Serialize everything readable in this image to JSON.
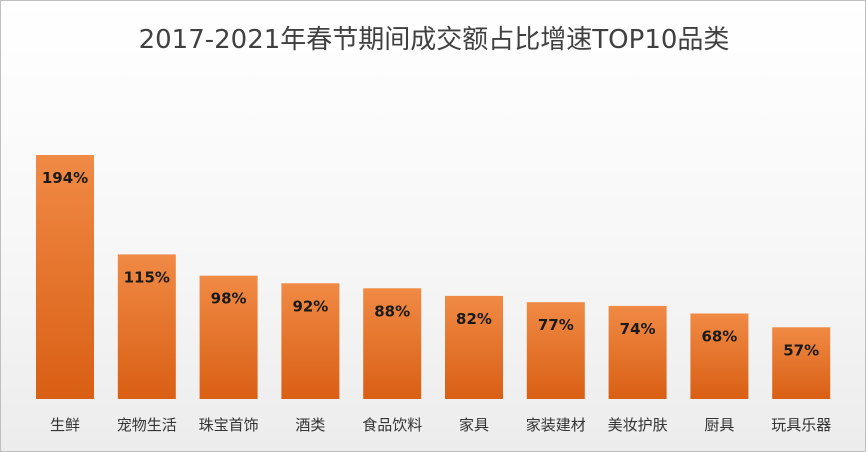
{
  "chart_data": {
    "type": "bar",
    "title": "2017-2021年春节期间成交额占比增速TOP10品类",
    "categories": [
      "生鲜",
      "宠物生活",
      "珠宝首饰",
      "酒类",
      "食品饮料",
      "家具",
      "家装建材",
      "美妆护肤",
      "厨具",
      "玩具乐器"
    ],
    "values": [
      194,
      115,
      98,
      92,
      88,
      82,
      77,
      74,
      68,
      57
    ],
    "data_labels": [
      "194%",
      "115%",
      "98%",
      "92%",
      "88%",
      "82%",
      "77%",
      "74%",
      "68%",
      "57%"
    ],
    "unit": "%",
    "bar_color": "#ed7d31",
    "grid": false,
    "legend": "none"
  }
}
